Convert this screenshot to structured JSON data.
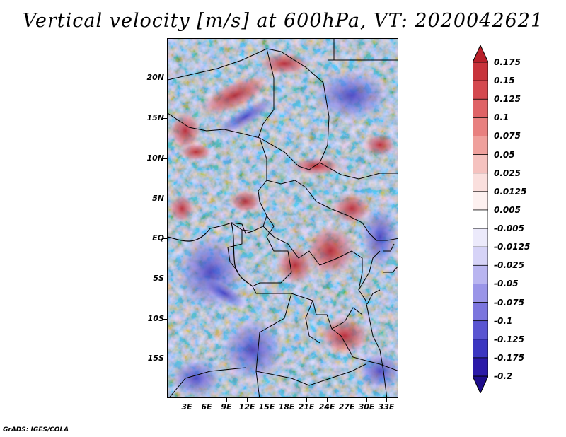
{
  "title": "Vertical velocity [m/s] at 600hPa, VT: 2020042621",
  "footer": "GrADS: IGES/COLA",
  "map": {
    "region": "Central/West Africa",
    "y_axis_labels": [
      "20N",
      "15N",
      "10N",
      "5N",
      "EQ",
      "5S",
      "10S",
      "15S"
    ],
    "x_axis_labels": [
      "3E",
      "6E",
      "9E",
      "12E",
      "15E",
      "18E",
      "21E",
      "24E",
      "27E",
      "30E",
      "33E"
    ]
  },
  "colorbar": {
    "labels": [
      "0.175",
      "0.15",
      "0.125",
      "0.1",
      "0.075",
      "0.05",
      "0.025",
      "0.0125",
      "0.005",
      "-0.005",
      "-0.0125",
      "-0.025",
      "-0.05",
      "-0.075",
      "-0.1",
      "-0.125",
      "-0.175",
      "-0.2"
    ],
    "colors": [
      "#b8202a",
      "#c8333b",
      "#d4494f",
      "#df6366",
      "#e8807f",
      "#efa09c",
      "#f5c2bf",
      "#fadfdd",
      "#fdf1f0",
      "#ffffff",
      "#eceafb",
      "#d6d3f7",
      "#b9b5f0",
      "#9a95e8",
      "#7b75de",
      "#5a55d1",
      "#3b36c1",
      "#2b1aa8",
      "#1e0d8c"
    ]
  },
  "colors": {
    "upward": "#c8333b",
    "downward": "#3b36c1",
    "border": "#000000"
  }
}
